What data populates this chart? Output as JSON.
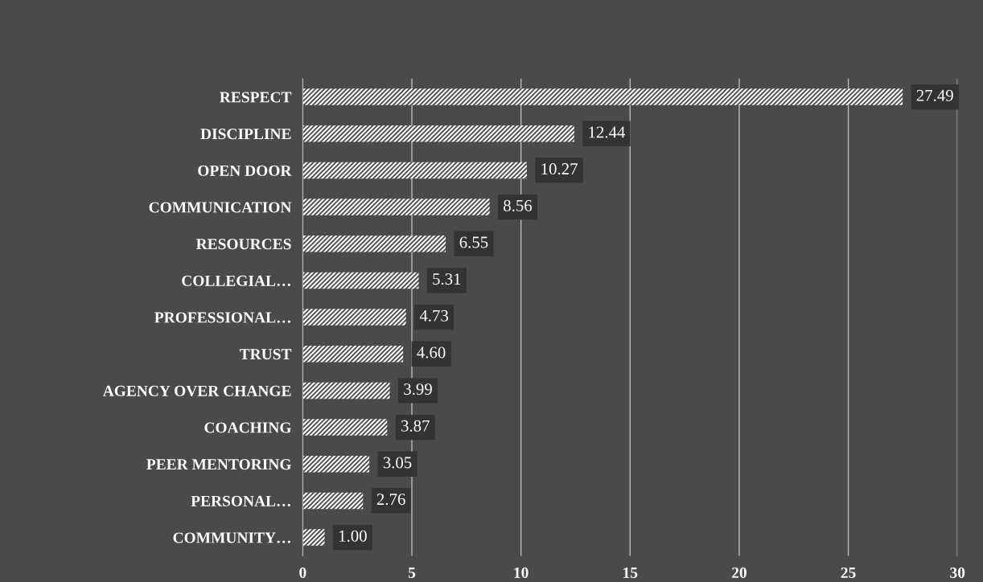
{
  "chart_data": {
    "type": "bar",
    "orientation": "horizontal",
    "categories": [
      "RESPECT",
      "DISCIPLINE",
      "OPEN DOOR",
      "COMMUNICATION",
      "RESOURCES",
      "COLLEGIAL…",
      "PROFESSIONAL…",
      "TRUST",
      "AGENCY OVER CHANGE",
      "COACHING",
      "PEER MENTORING",
      "PERSONAL…",
      "COMMUNITY…"
    ],
    "values": [
      27.49,
      12.44,
      10.27,
      8.56,
      6.55,
      5.31,
      4.73,
      4.6,
      3.99,
      3.87,
      3.05,
      2.76,
      1.0
    ],
    "value_labels": [
      "27.49",
      "12.44",
      "10.27",
      "8.56",
      "6.55",
      "5.31",
      "4.73",
      "4.60",
      "3.99",
      "3.87",
      "3.05",
      "2.76",
      "1.00"
    ],
    "color": "#ffffff",
    "xlim": [
      0,
      30
    ],
    "xticks": [
      0,
      5,
      10,
      15,
      20,
      25,
      30
    ],
    "grid": "x"
  }
}
